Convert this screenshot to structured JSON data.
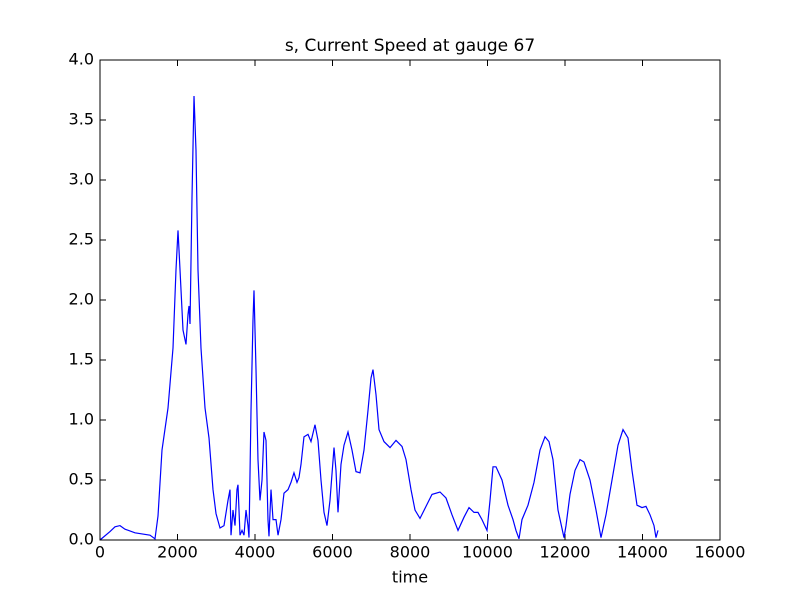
{
  "chart_data": {
    "type": "line",
    "title": "s, Current Speed at gauge 67",
    "x_label": "time",
    "x": [
      0,
      258,
      387,
      516,
      645,
      903,
      1290,
      1419,
      1497,
      1600,
      1755,
      1884,
      1961,
      2013,
      2065,
      2142,
      2219,
      2271,
      2297,
      2323,
      2374,
      2426,
      2477,
      2529,
      2606,
      2710,
      2813,
      2916,
      2994,
      3097,
      3200,
      3303,
      3355,
      3381,
      3432,
      3484,
      3535,
      3561,
      3613,
      3665,
      3716,
      3768,
      3819,
      3845,
      3897,
      3948,
      3974,
      4026,
      4077,
      4129,
      4181,
      4232,
      4284,
      4335,
      4361,
      4413,
      4465,
      4542,
      4594,
      4671,
      4748,
      4852,
      4929,
      5006,
      5084,
      5135,
      5187,
      5264,
      5368,
      5445,
      5548,
      5626,
      5703,
      5781,
      5858,
      5935,
      6039,
      6090,
      6142,
      6219,
      6297,
      6400,
      6503,
      6606,
      6710,
      6813,
      6916,
      6994,
      7045,
      7123,
      7200,
      7329,
      7484,
      7639,
      7794,
      7897,
      8026,
      8129,
      8258,
      8413,
      8568,
      8774,
      8929,
      9084,
      9239,
      9394,
      9523,
      9652,
      9755,
      9858,
      9987,
      10065,
      10142,
      10219,
      10374,
      10529,
      10658,
      10735,
      10813,
      10890,
      11045,
      11200,
      11355,
      11484,
      11587,
      11690,
      11819,
      11974,
      12026,
      12129,
      12258,
      12387,
      12490,
      12645,
      12800,
      12929,
      13058,
      13213,
      13368,
      13497,
      13626,
      13729,
      13858,
      13987,
      14090,
      14194,
      14297,
      14348,
      14400
    ],
    "series": [
      {
        "color": "#0000ff",
        "values": [
          0,
          0.07,
          0.11,
          0.12,
          0.09,
          0.06,
          0.04,
          0.01,
          0.2,
          0.75,
          1.1,
          1.6,
          2.25,
          2.58,
          2.25,
          1.75,
          1.63,
          1.88,
          1.95,
          1.8,
          2.85,
          3.7,
          3.25,
          2.25,
          1.6,
          1.1,
          0.85,
          0.42,
          0.22,
          0.1,
          0.12,
          0.33,
          0.42,
          0.04,
          0.25,
          0.12,
          0.42,
          0.46,
          0.04,
          0.08,
          0.04,
          0.25,
          0.12,
          0.02,
          1.08,
          1.83,
          2.08,
          1.42,
          0.67,
          0.33,
          0.5,
          0.9,
          0.83,
          0.17,
          0.03,
          0.42,
          0.17,
          0.17,
          0.04,
          0.17,
          0.39,
          0.42,
          0.48,
          0.56,
          0.48,
          0.52,
          0.63,
          0.86,
          0.88,
          0.82,
          0.96,
          0.83,
          0.5,
          0.23,
          0.12,
          0.33,
          0.77,
          0.58,
          0.23,
          0.63,
          0.79,
          0.9,
          0.75,
          0.57,
          0.56,
          0.75,
          1.08,
          1.35,
          1.42,
          1.21,
          0.92,
          0.82,
          0.77,
          0.83,
          0.78,
          0.67,
          0.42,
          0.25,
          0.18,
          0.28,
          0.38,
          0.4,
          0.35,
          0.21,
          0.08,
          0.19,
          0.27,
          0.23,
          0.23,
          0.17,
          0.08,
          0.33,
          0.61,
          0.61,
          0.5,
          0.29,
          0.17,
          0.08,
          0.01,
          0.17,
          0.29,
          0.48,
          0.75,
          0.86,
          0.82,
          0.67,
          0.25,
          0.02,
          0.12,
          0.38,
          0.58,
          0.67,
          0.65,
          0.5,
          0.25,
          0.02,
          0.21,
          0.5,
          0.79,
          0.92,
          0.85,
          0.58,
          0.29,
          0.27,
          0.28,
          0.21,
          0.12,
          0.02,
          0.08
        ]
      }
    ],
    "xlim": [
      0,
      16000
    ],
    "xticks": [
      0,
      2000,
      4000,
      6000,
      8000,
      10000,
      12000,
      14000,
      16000
    ],
    "ylim": [
      0,
      4
    ],
    "yticks": [
      {
        "value": 0,
        "label": "0.0"
      },
      0.5,
      {
        "value": 1,
        "label": "1.0"
      },
      1.5,
      {
        "value": 2,
        "label": "2.0"
      },
      2.5,
      {
        "value": 3,
        "label": "3.0"
      },
      3.5,
      {
        "value": 4,
        "label": "4.0"
      }
    ]
  }
}
